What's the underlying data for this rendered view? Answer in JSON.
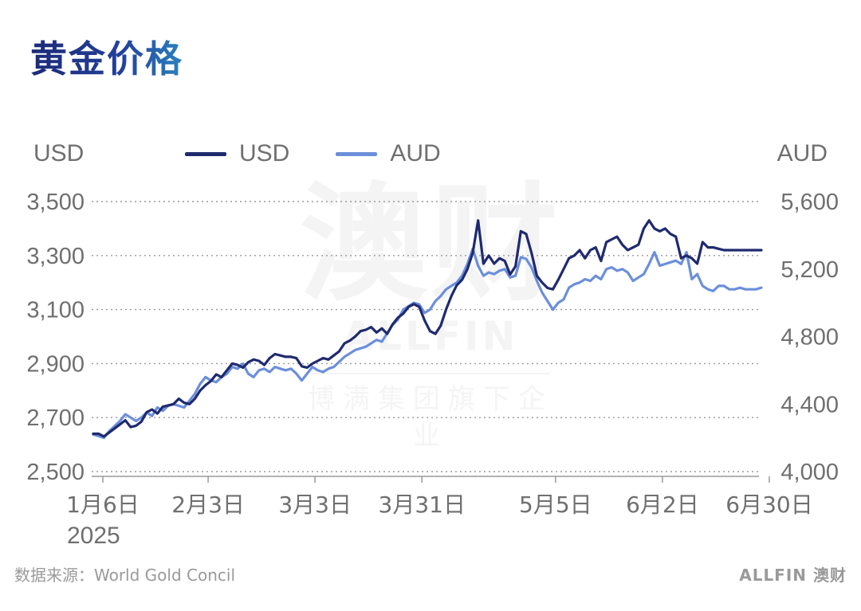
{
  "title": "黄金价格",
  "left_unit": "USD",
  "right_unit": "AUD",
  "year_label": "2025",
  "source": "数据来源：World Gold Concil",
  "logo": "ALLFIN 澳财",
  "watermark": {
    "big": "澳财",
    "en": "ALLFIN",
    "sub": "博满集团旗下企业"
  },
  "colors": {
    "usd": "#1f2a6e",
    "aud": "#6b8fdb",
    "grid": "#9a9a9a",
    "text": "#6f6f6f"
  },
  "chart_data": {
    "type": "line",
    "title": "黄金价格",
    "legend": "top",
    "grid": true,
    "x_ticks": [
      "1月6日",
      "2月3日",
      "3月3日",
      "3月31日",
      "5月5日",
      "6月2日",
      "6月30日"
    ],
    "x_tick_index": [
      0,
      20,
      40,
      60,
      85,
      105,
      125
    ],
    "y_left": {
      "label": "USD",
      "ylim": [
        2500,
        3500
      ],
      "ticks": [
        "2,500",
        "2,700",
        "2,900",
        "3,100",
        "3,300",
        "3,500"
      ],
      "tick_values": [
        2500,
        2700,
        2900,
        3100,
        3300,
        3500
      ]
    },
    "y_right": {
      "label": "AUD",
      "ylim": [
        4000,
        5600
      ],
      "ticks": [
        "4,000",
        "4,400",
        "4,800",
        "5,200",
        "5,600"
      ],
      "tick_values": [
        4000,
        4400,
        4800,
        5200,
        5600
      ]
    },
    "series": [
      {
        "name": "USD",
        "axis": "left",
        "values": [
          2640,
          2640,
          2630,
          2645,
          2660,
          2675,
          2690,
          2665,
          2670,
          2685,
          2720,
          2730,
          2715,
          2740,
          2745,
          2750,
          2770,
          2755,
          2750,
          2770,
          2800,
          2820,
          2835,
          2860,
          2850,
          2875,
          2900,
          2895,
          2885,
          2905,
          2915,
          2910,
          2895,
          2920,
          2935,
          2930,
          2925,
          2925,
          2920,
          2890,
          2885,
          2900,
          2910,
          2920,
          2915,
          2930,
          2945,
          2975,
          2985,
          3000,
          3020,
          3025,
          3035,
          3015,
          3030,
          3010,
          3045,
          3070,
          3085,
          3110,
          3120,
          3110,
          3060,
          3020,
          3010,
          3040,
          3100,
          3150,
          3190,
          3210,
          3250,
          3310,
          3430,
          3270,
          3300,
          3270,
          3290,
          3280,
          3230,
          3260,
          3390,
          3380,
          3310,
          3225,
          3200,
          3180,
          3175,
          3210,
          3250,
          3290,
          3300,
          3320,
          3290,
          3320,
          3330,
          3280,
          3350,
          3360,
          3370,
          3340,
          3320,
          3330,
          3340,
          3400,
          3430,
          3400,
          3390,
          3400,
          3380,
          3370,
          3290,
          3300,
          3290,
          3270,
          3350,
          3330,
          3330,
          3325,
          3320,
          3320,
          3320,
          3320,
          3320,
          3320,
          3320,
          3320
        ]
      },
      {
        "name": "AUD",
        "axis": "right",
        "values": [
          4220,
          4210,
          4200,
          4240,
          4270,
          4300,
          4340,
          4320,
          4300,
          4320,
          4350,
          4330,
          4380,
          4360,
          4390,
          4400,
          4390,
          4380,
          4420,
          4460,
          4520,
          4560,
          4540,
          4530,
          4560,
          4580,
          4620,
          4610,
          4640,
          4580,
          4560,
          4600,
          4610,
          4590,
          4620,
          4610,
          4600,
          4610,
          4580,
          4540,
          4580,
          4620,
          4600,
          4590,
          4610,
          4620,
          4650,
          4680,
          4700,
          4720,
          4730,
          4740,
          4760,
          4780,
          4770,
          4820,
          4870,
          4900,
          4960,
          4980,
          5000,
          4990,
          4940,
          4960,
          5010,
          5040,
          5080,
          5100,
          5120,
          5160,
          5230,
          5320,
          5220,
          5160,
          5180,
          5170,
          5190,
          5200,
          5150,
          5160,
          5270,
          5260,
          5210,
          5130,
          5060,
          5010,
          4960,
          5000,
          5020,
          5090,
          5110,
          5120,
          5140,
          5130,
          5160,
          5140,
          5200,
          5210,
          5190,
          5200,
          5180,
          5130,
          5150,
          5170,
          5230,
          5300,
          5220,
          5230,
          5240,
          5250,
          5230,
          5300,
          5140,
          5170,
          5100,
          5080,
          5070,
          5100,
          5100,
          5080,
          5080,
          5090,
          5080,
          5080,
          5080,
          5090
        ]
      }
    ]
  }
}
